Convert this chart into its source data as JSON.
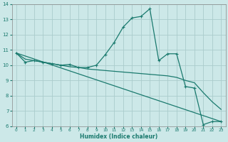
{
  "xlabel": "Humidex (Indice chaleur)",
  "bg_color": "#cce8e8",
  "grid_color": "#aacccc",
  "line_color": "#1a7a6e",
  "xlim": [
    -0.5,
    23.5
  ],
  "ylim": [
    6,
    14
  ],
  "xticks": [
    0,
    1,
    2,
    3,
    4,
    5,
    6,
    7,
    8,
    9,
    10,
    11,
    12,
    13,
    14,
    15,
    16,
    17,
    18,
    19,
    20,
    21,
    22,
    23
  ],
  "yticks": [
    6,
    7,
    8,
    9,
    10,
    11,
    12,
    13,
    14
  ],
  "line1_x": [
    0,
    1,
    2,
    3,
    4,
    5,
    6,
    7,
    8,
    9,
    10,
    11,
    12,
    13,
    14,
    15,
    16,
    17,
    18,
    19,
    20,
    21,
    22,
    23
  ],
  "line1_y": [
    10.8,
    10.2,
    10.3,
    10.2,
    10.1,
    10.0,
    10.05,
    9.85,
    9.85,
    10.0,
    10.7,
    11.5,
    12.5,
    13.1,
    13.2,
    13.7,
    10.3,
    10.75,
    10.75,
    8.6,
    8.5,
    6.1,
    6.3,
    6.3
  ],
  "line2_x": [
    0,
    1,
    2,
    3,
    4,
    5,
    6,
    7,
    8,
    9,
    10,
    11,
    12,
    13,
    14,
    15,
    16,
    17,
    18,
    19,
    20,
    21,
    22,
    23
  ],
  "line2_y": [
    10.8,
    10.4,
    10.3,
    10.2,
    10.1,
    10.0,
    9.9,
    9.85,
    9.75,
    9.7,
    9.65,
    9.6,
    9.55,
    9.5,
    9.45,
    9.4,
    9.35,
    9.3,
    9.2,
    9.0,
    8.85,
    8.2,
    7.6,
    7.1
  ],
  "line3_x": [
    0,
    23
  ],
  "line3_y": [
    10.8,
    6.3
  ]
}
